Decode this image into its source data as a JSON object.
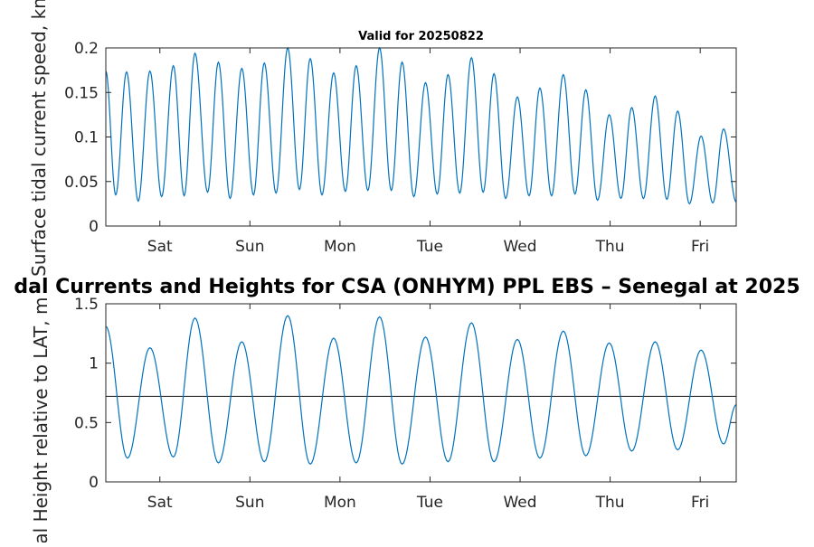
{
  "figure_title": "dal Currents and Heights for CSA (ONHYM) PPL EBS  – Senegal at 2025",
  "colors": {
    "series": "#0072BD",
    "reference_line": "#333333",
    "axes": "#262626",
    "grid_box": "#262626"
  },
  "chart_data": [
    {
      "type": "line",
      "title": "Valid for 20250822",
      "ylabel": "Surface tidal current speed, kn",
      "xlabel": "",
      "x_unit": "days from Friday 22 August 2025 00:00",
      "xlim": [
        0,
        7
      ],
      "ylim": [
        0,
        0.2
      ],
      "yticks": [
        "0",
        "0.05",
        "0.1",
        "0.15",
        "0.2"
      ],
      "ytick_values": [
        0,
        0.05,
        0.1,
        0.15,
        0.2
      ],
      "xticks": [
        "Sat",
        "Sun",
        "Mon",
        "Tue",
        "Wed",
        "Thu",
        "Fri"
      ],
      "xtick_values": [
        0.6,
        1.6,
        2.6,
        3.6,
        4.6,
        5.6,
        6.6
      ],
      "grid": false,
      "legend": "none",
      "series": [
        {
          "peaks": [
            [
              0.0,
              0.174
            ],
            [
              0.23,
              0.173
            ],
            [
              0.49,
              0.174
            ],
            [
              0.75,
              0.18
            ],
            [
              0.99,
              0.194
            ],
            [
              1.25,
              0.184
            ],
            [
              1.51,
              0.177
            ],
            [
              1.76,
              0.183
            ],
            [
              2.02,
              0.2
            ],
            [
              2.27,
              0.188
            ],
            [
              2.53,
              0.172
            ],
            [
              2.78,
              0.18
            ],
            [
              3.04,
              0.2
            ],
            [
              3.29,
              0.184
            ],
            [
              3.55,
              0.161
            ],
            [
              3.8,
              0.17
            ],
            [
              4.06,
              0.189
            ],
            [
              4.31,
              0.171
            ],
            [
              4.57,
              0.145
            ],
            [
              4.82,
              0.155
            ],
            [
              5.08,
              0.17
            ],
            [
              5.33,
              0.153
            ],
            [
              5.59,
              0.125
            ],
            [
              5.84,
              0.133
            ],
            [
              6.1,
              0.146
            ],
            [
              6.35,
              0.129
            ],
            [
              6.61,
              0.101
            ],
            [
              6.86,
              0.109
            ]
          ],
          "troughs": [
            [
              0.11,
              0.035
            ],
            [
              0.36,
              0.028
            ],
            [
              0.62,
              0.033
            ],
            [
              0.87,
              0.034
            ],
            [
              1.13,
              0.038
            ],
            [
              1.38,
              0.031
            ],
            [
              1.64,
              0.035
            ],
            [
              1.89,
              0.037
            ],
            [
              2.15,
              0.041
            ],
            [
              2.4,
              0.035
            ],
            [
              2.66,
              0.039
            ],
            [
              2.91,
              0.04
            ],
            [
              3.17,
              0.04
            ],
            [
              3.42,
              0.033
            ],
            [
              3.68,
              0.036
            ],
            [
              3.93,
              0.037
            ],
            [
              4.19,
              0.038
            ],
            [
              4.44,
              0.031
            ],
            [
              4.7,
              0.034
            ],
            [
              4.95,
              0.034
            ],
            [
              5.21,
              0.036
            ],
            [
              5.46,
              0.029
            ],
            [
              5.72,
              0.031
            ],
            [
              5.97,
              0.031
            ],
            [
              6.23,
              0.03
            ],
            [
              6.48,
              0.025
            ],
            [
              6.74,
              0.026
            ],
            [
              7.0,
              0.027
            ]
          ]
        }
      ]
    },
    {
      "type": "line",
      "title": "",
      "ylabel": "Tidal Height relative to LAT, m",
      "xlabel": "",
      "x_unit": "days from Friday 22 August 2025 00:00",
      "xlim": [
        0,
        7
      ],
      "ylim": [
        0,
        1.5
      ],
      "yticks": [
        "0",
        "0.5",
        "1",
        "1.5"
      ],
      "ytick_values": [
        0,
        0.5,
        1,
        1.5
      ],
      "xticks": [
        "Sat",
        "Sun",
        "Mon",
        "Tue",
        "Wed",
        "Thu",
        "Fri"
      ],
      "xtick_values": [
        0.6,
        1.6,
        2.6,
        3.6,
        4.6,
        5.6,
        6.6
      ],
      "grid": false,
      "legend": "none",
      "reference_line": {
        "y": 0.72
      },
      "series": [
        {
          "peaks": [
            [
              0.0,
              1.31
            ],
            [
              0.49,
              1.13
            ],
            [
              0.99,
              1.38
            ],
            [
              1.51,
              1.18
            ],
            [
              2.02,
              1.4
            ],
            [
              2.53,
              1.21
            ],
            [
              3.04,
              1.39
            ],
            [
              3.55,
              1.22
            ],
            [
              4.06,
              1.34
            ],
            [
              4.57,
              1.2
            ],
            [
              5.08,
              1.27
            ],
            [
              5.59,
              1.17
            ],
            [
              6.1,
              1.18
            ],
            [
              6.61,
              1.11
            ]
          ],
          "troughs": [
            [
              0.24,
              0.2
            ],
            [
              0.75,
              0.21
            ],
            [
              1.25,
              0.16
            ],
            [
              1.76,
              0.17
            ],
            [
              2.27,
              0.15
            ],
            [
              2.78,
              0.16
            ],
            [
              3.29,
              0.15
            ],
            [
              3.8,
              0.17
            ],
            [
              4.31,
              0.17
            ],
            [
              4.82,
              0.2
            ],
            [
              5.33,
              0.22
            ],
            [
              5.84,
              0.26
            ],
            [
              6.35,
              0.27
            ],
            [
              6.86,
              0.32
            ]
          ],
          "end_value": [
            7.0,
            0.65
          ]
        }
      ]
    }
  ]
}
